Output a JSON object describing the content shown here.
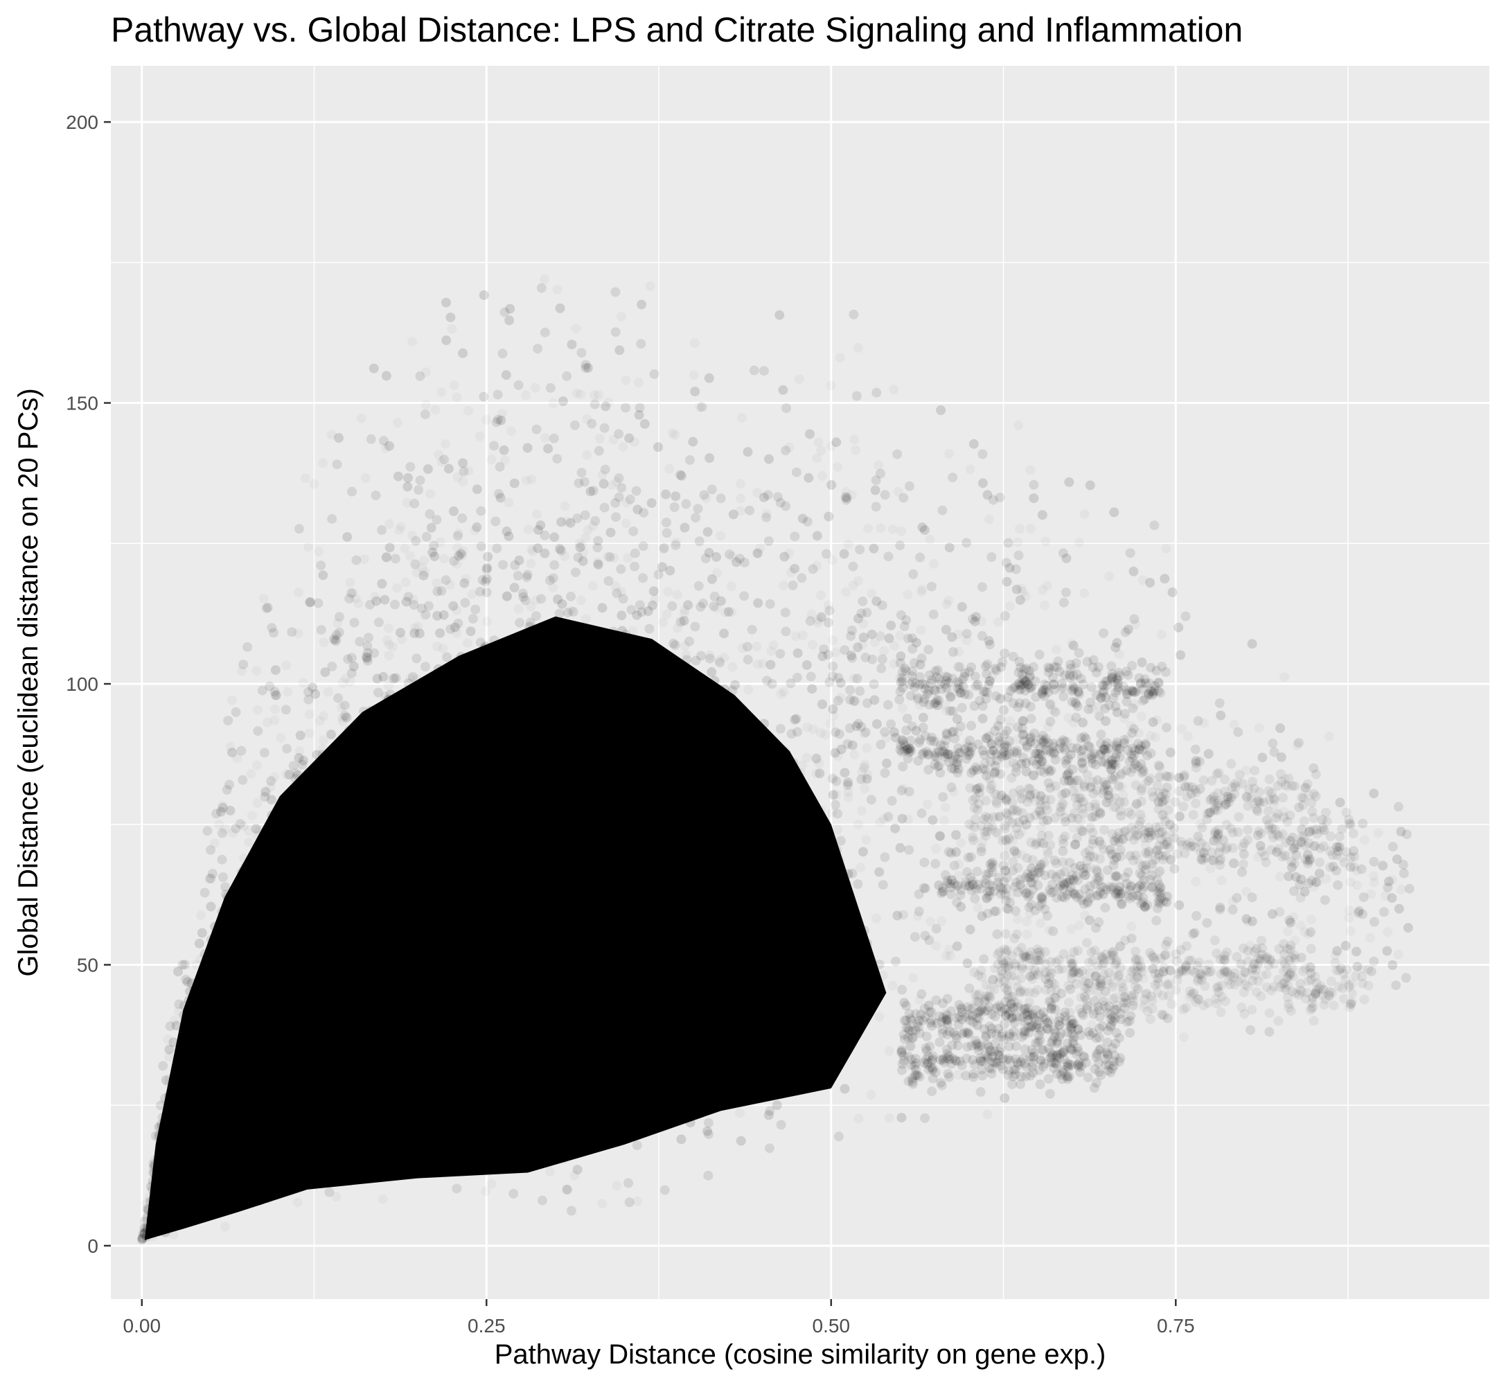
{
  "chart_data": {
    "type": "scatter",
    "title": "Pathway vs. Global Distance: LPS and Citrate Signaling and Inflammation",
    "xlabel": "Pathway Distance (cosine similarity on gene exp.)",
    "ylabel": "Global Distance (euclidean distance on 20 PCs)",
    "xlim": [
      -0.0225,
      0.9775
    ],
    "ylim": [
      -9.5,
      210
    ],
    "x_ticks": [
      0,
      0.25,
      0.5,
      0.75
    ],
    "x_tick_labels": [
      "0.00",
      "0.25",
      "0.50",
      "0.75"
    ],
    "y_ticks": [
      0,
      50,
      100,
      150,
      200
    ],
    "y_tick_labels": [
      "0",
      "50",
      "100",
      "150",
      "200"
    ],
    "x_minor_ticks": [
      0.125,
      0.375,
      0.625,
      0.875
    ],
    "y_minor_ticks": [
      25,
      75,
      125,
      175
    ],
    "grid": true,
    "legend": "none",
    "point_color": "#000000",
    "point_alpha": 0.03,
    "point_count_note": "",
    "point_cloud_envelope": [
      {
        "x": 0.02,
        "y_low": 2,
        "y_high": 40
      },
      {
        "x": 0.05,
        "y_low": 4,
        "y_high": 75
      },
      {
        "x": 0.1,
        "y_low": 9,
        "y_high": 125
      },
      {
        "x": 0.2,
        "y_low": 8,
        "y_high": 160
      },
      {
        "x": 0.3,
        "y_low": 7,
        "y_high": 165
      },
      {
        "x": 0.4,
        "y_low": 12,
        "y_high": 165
      },
      {
        "x": 0.5,
        "y_low": 22,
        "y_high": 160
      },
      {
        "x": 0.6,
        "y_low": 25,
        "y_high": 150
      },
      {
        "x": 0.7,
        "y_low": 27,
        "y_high": 130
      },
      {
        "x": 0.8,
        "y_low": 40,
        "y_high": 105
      },
      {
        "x": 0.88,
        "y_low": 44,
        "y_high": 80
      }
    ]
  }
}
